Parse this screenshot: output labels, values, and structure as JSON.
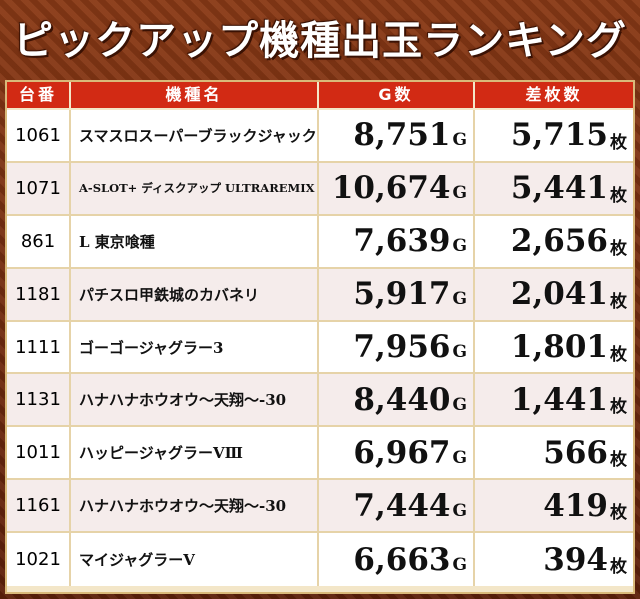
{
  "title": "ピックアップ機種出玉ランキング",
  "columns": {
    "number": "台番",
    "model": "機種名",
    "games": "G数",
    "diff": "差枚数"
  },
  "units": {
    "games": "G",
    "diff": "枚"
  },
  "rows": [
    {
      "number": "1061",
      "model": "スマスロスーパーブラックジャック",
      "games": "8,751",
      "diff": "5,715"
    },
    {
      "number": "1071",
      "model": "A-SLOT+ ディスクアップ ULTRAREMIX",
      "games": "10,674",
      "diff": "5,441"
    },
    {
      "number": "861",
      "model": "L 東京喰種",
      "games": "7,639",
      "diff": "2,656"
    },
    {
      "number": "1181",
      "model": "パチスロ甲鉄城のカバネリ",
      "games": "5,917",
      "diff": "2,041"
    },
    {
      "number": "1111",
      "model": "ゴーゴージャグラー3",
      "games": "7,956",
      "diff": "1,801"
    },
    {
      "number": "1131",
      "model": "ハナハナホウオウ～天翔～-30",
      "games": "8,440",
      "diff": "1,441"
    },
    {
      "number": "1011",
      "model": "ハッピージャグラーVⅢ",
      "games": "6,967",
      "diff": "566"
    },
    {
      "number": "1161",
      "model": "ハナハナホウオウ～天翔～-30",
      "games": "7,444",
      "diff": "419"
    },
    {
      "number": "1021",
      "model": "マイジャグラーV",
      "games": "6,663",
      "diff": "394"
    }
  ]
}
